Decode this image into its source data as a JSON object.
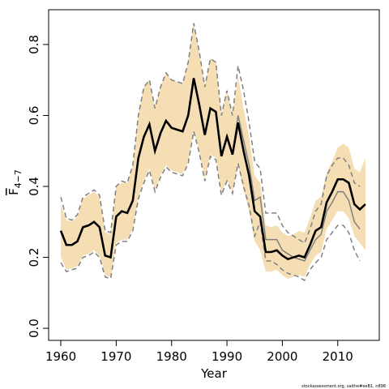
{
  "chart_data": {
    "type": "line",
    "xlabel": "Year",
    "ylabel": "F",
    "ylabel_sub": "4−7",
    "footer": "stockassessment.org, saithe#eeB1, n898",
    "x": [
      1960,
      1961,
      1962,
      1963,
      1964,
      1965,
      1966,
      1967,
      1968,
      1969,
      1970,
      1971,
      1972,
      1973,
      1974,
      1975,
      1976,
      1977,
      1978,
      1979,
      1980,
      1981,
      1982,
      1983,
      1984,
      1985,
      1986,
      1987,
      1988,
      1989,
      1990,
      1991,
      1992,
      1993,
      1994,
      1995,
      1996,
      1997,
      1998,
      1999,
      2000,
      2001,
      2002,
      2003,
      2004,
      2005,
      2006,
      2007,
      2008,
      2009,
      2010,
      2011,
      2012,
      2013,
      2014,
      2015
    ],
    "band": {
      "color": "#f5deb3",
      "lower": [
        0.2,
        0.165,
        0.17,
        0.175,
        0.205,
        0.21,
        0.22,
        0.205,
        0.15,
        0.145,
        0.24,
        0.25,
        0.25,
        0.28,
        0.37,
        0.415,
        0.45,
        0.39,
        0.43,
        0.46,
        0.445,
        0.44,
        0.435,
        0.47,
        0.56,
        0.5,
        0.42,
        0.49,
        0.48,
        0.38,
        0.42,
        0.385,
        0.46,
        0.39,
        0.33,
        0.245,
        0.22,
        0.16,
        0.16,
        0.165,
        0.15,
        0.14,
        0.145,
        0.15,
        0.145,
        0.18,
        0.205,
        0.215,
        0.28,
        0.305,
        0.33,
        0.33,
        0.31,
        0.26,
        0.24,
        0.22
      ],
      "upper": [
        0.35,
        0.305,
        0.3,
        0.315,
        0.365,
        0.375,
        0.385,
        0.37,
        0.27,
        0.265,
        0.4,
        0.41,
        0.41,
        0.46,
        0.6,
        0.68,
        0.7,
        0.62,
        0.68,
        0.72,
        0.7,
        0.695,
        0.69,
        0.75,
        0.86,
        0.78,
        0.68,
        0.76,
        0.75,
        0.6,
        0.67,
        0.6,
        0.71,
        0.62,
        0.54,
        0.43,
        0.41,
        0.29,
        0.285,
        0.29,
        0.27,
        0.26,
        0.265,
        0.275,
        0.27,
        0.31,
        0.36,
        0.37,
        0.44,
        0.47,
        0.51,
        0.52,
        0.51,
        0.45,
        0.44,
        0.48
      ]
    },
    "series": [
      {
        "color": "#808080",
        "style": "dashed",
        "width": 1.5,
        "values": [
          0.37,
          0.31,
          0.305,
          0.32,
          0.37,
          0.38,
          0.39,
          0.375,
          0.275,
          0.27,
          0.4,
          0.415,
          0.41,
          0.46,
          0.6,
          0.68,
          0.7,
          0.62,
          0.68,
          0.72,
          0.7,
          0.695,
          0.69,
          0.75,
          0.86,
          0.78,
          0.68,
          0.76,
          0.75,
          0.6,
          0.67,
          0.6,
          0.74,
          0.67,
          0.58,
          0.47,
          0.45,
          0.325,
          0.325,
          0.325,
          0.29,
          0.27,
          0.26,
          0.25,
          0.24,
          0.28,
          0.33,
          0.35,
          0.43,
          0.46,
          0.48,
          0.48,
          0.46,
          0.41,
          0.4,
          null
        ]
      },
      {
        "color": "#808080",
        "style": "dashed",
        "width": 1.5,
        "values": [
          0.185,
          0.16,
          0.165,
          0.17,
          0.2,
          0.205,
          0.215,
          0.2,
          0.145,
          0.14,
          0.235,
          0.245,
          0.245,
          0.275,
          0.365,
          0.41,
          0.445,
          0.385,
          0.425,
          0.455,
          0.44,
          0.435,
          0.43,
          0.465,
          0.555,
          0.495,
          0.415,
          0.485,
          0.475,
          0.375,
          0.415,
          0.38,
          0.465,
          0.4,
          0.345,
          0.26,
          0.3,
          0.19,
          0.19,
          0.18,
          0.165,
          0.155,
          0.15,
          0.145,
          0.135,
          0.165,
          0.185,
          0.2,
          0.25,
          0.27,
          0.29,
          0.29,
          0.27,
          0.22,
          0.19,
          null
        ]
      },
      {
        "color": "#808080",
        "style": "solid",
        "width": 1.5,
        "values": [
          0.275,
          0.235,
          0.235,
          0.245,
          0.285,
          0.29,
          0.3,
          0.285,
          0.205,
          0.2,
          0.315,
          0.33,
          0.325,
          0.36,
          0.48,
          0.54,
          0.575,
          0.5,
          0.55,
          0.585,
          0.565,
          0.56,
          0.555,
          0.6,
          0.705,
          0.63,
          0.545,
          0.62,
          0.61,
          0.485,
          0.54,
          0.49,
          0.6,
          0.53,
          0.46,
          0.36,
          0.37,
          0.25,
          0.25,
          0.25,
          0.22,
          0.21,
          0.2,
          0.195,
          0.19,
          0.22,
          0.25,
          0.265,
          0.33,
          0.355,
          0.385,
          0.385,
          0.36,
          0.3,
          0.28,
          null
        ]
      },
      {
        "color": "#000000",
        "style": "solid",
        "width": 2.6,
        "values": [
          0.275,
          0.235,
          0.235,
          0.245,
          0.285,
          0.29,
          0.3,
          0.285,
          0.205,
          0.2,
          0.315,
          0.33,
          0.325,
          0.36,
          0.48,
          0.54,
          0.575,
          0.5,
          0.55,
          0.585,
          0.565,
          0.56,
          0.555,
          0.6,
          0.705,
          0.63,
          0.545,
          0.62,
          0.61,
          0.485,
          0.54,
          0.49,
          0.58,
          0.5,
          0.43,
          0.33,
          0.315,
          0.215,
          0.215,
          0.22,
          0.205,
          0.195,
          0.2,
          0.205,
          0.2,
          0.235,
          0.275,
          0.285,
          0.355,
          0.385,
          0.42,
          0.42,
          0.41,
          0.35,
          0.335,
          0.35
        ]
      }
    ],
    "xlim": [
      1957.8,
      2017.5
    ],
    "xticks": [
      1960,
      1970,
      1980,
      1990,
      2000,
      2010
    ],
    "ylim": [
      -0.034,
      0.898
    ],
    "yticks": [
      {
        "value": 0,
        "label": "0.0"
      },
      0.2,
      0.4,
      0.6,
      0.8
    ]
  }
}
